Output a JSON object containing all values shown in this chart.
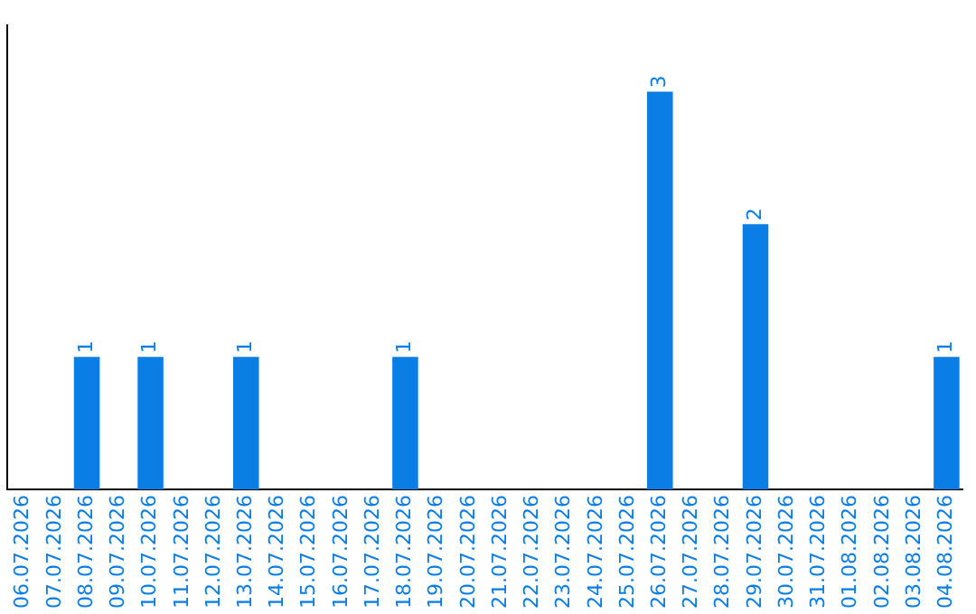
{
  "chart_data": {
    "type": "bar",
    "categories": [
      "06.07.2026",
      "07.07.2026",
      "08.07.2026",
      "09.07.2026",
      "10.07.2026",
      "11.07.2026",
      "12.07.2026",
      "13.07.2026",
      "14.07.2026",
      "15.07.2026",
      "16.07.2026",
      "17.07.2026",
      "18.07.2026",
      "19.07.2026",
      "20.07.2026",
      "21.07.2026",
      "22.07.2026",
      "23.07.2026",
      "24.07.2026",
      "25.07.2026",
      "26.07.2026",
      "27.07.2026",
      "28.07.2026",
      "29.07.2026",
      "30.07.2026",
      "31.07.2026",
      "01.08.2026",
      "02.08.2026",
      "03.08.2026",
      "04.08.2026"
    ],
    "values": [
      null,
      null,
      1,
      null,
      1,
      null,
      null,
      1,
      null,
      null,
      null,
      null,
      1,
      null,
      null,
      null,
      null,
      null,
      null,
      null,
      3,
      null,
      null,
      2,
      null,
      null,
      null,
      null,
      null,
      1
    ],
    "color": "#0a7ee4",
    "data_labels": true,
    "grid": false,
    "tick_labels": "x"
  }
}
